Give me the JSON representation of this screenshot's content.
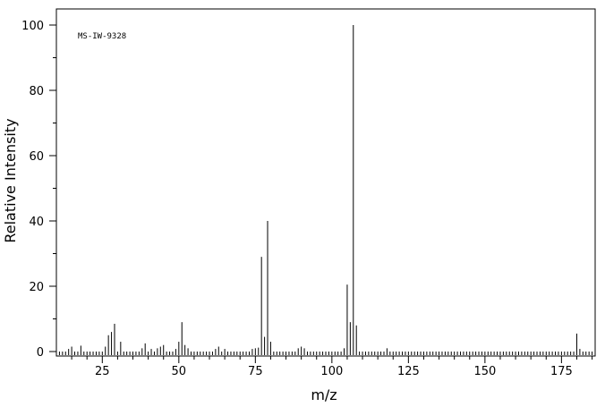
{
  "chart_data": {
    "type": "bar",
    "title": "",
    "annotation": "MS-IW-9328",
    "xlabel": "m/z",
    "ylabel": "Relative Intensity",
    "xlim": [
      10,
      186
    ],
    "ylim": [
      0,
      105
    ],
    "x_ticks": [
      25,
      50,
      75,
      100,
      125,
      150,
      175
    ],
    "y_ticks": [
      0,
      20,
      40,
      60,
      80,
      100
    ],
    "x_tick_labels": [
      "25",
      "50",
      "75",
      "100",
      "125",
      "150",
      "175"
    ],
    "y_tick_labels": [
      "0",
      "20",
      "40",
      "60",
      "80",
      "100"
    ],
    "grid": false,
    "legend": "none",
    "peaks": [
      {
        "mz": 14,
        "intensity": 0.8
      },
      {
        "mz": 15,
        "intensity": 1.5
      },
      {
        "mz": 18,
        "intensity": 1.8
      },
      {
        "mz": 26,
        "intensity": 1.5
      },
      {
        "mz": 27,
        "intensity": 5.0
      },
      {
        "mz": 28,
        "intensity": 6.0
      },
      {
        "mz": 29,
        "intensity": 8.5
      },
      {
        "mz": 31,
        "intensity": 3.0
      },
      {
        "mz": 38,
        "intensity": 1.0
      },
      {
        "mz": 39,
        "intensity": 2.5
      },
      {
        "mz": 41,
        "intensity": 0.8
      },
      {
        "mz": 43,
        "intensity": 1.0
      },
      {
        "mz": 44,
        "intensity": 1.5
      },
      {
        "mz": 45,
        "intensity": 2.0
      },
      {
        "mz": 49,
        "intensity": 0.8
      },
      {
        "mz": 50,
        "intensity": 3.0
      },
      {
        "mz": 51,
        "intensity": 9.0
      },
      {
        "mz": 52,
        "intensity": 2.0
      },
      {
        "mz": 53,
        "intensity": 1.0
      },
      {
        "mz": 62,
        "intensity": 0.8
      },
      {
        "mz": 63,
        "intensity": 1.5
      },
      {
        "mz": 65,
        "intensity": 0.8
      },
      {
        "mz": 74,
        "intensity": 0.8
      },
      {
        "mz": 75,
        "intensity": 1.0
      },
      {
        "mz": 76,
        "intensity": 1.2
      },
      {
        "mz": 77,
        "intensity": 29.0
      },
      {
        "mz": 78,
        "intensity": 4.5
      },
      {
        "mz": 79,
        "intensity": 40.0
      },
      {
        "mz": 80,
        "intensity": 3.0
      },
      {
        "mz": 89,
        "intensity": 1.0
      },
      {
        "mz": 90,
        "intensity": 1.5
      },
      {
        "mz": 91,
        "intensity": 1.0
      },
      {
        "mz": 104,
        "intensity": 1.0
      },
      {
        "mz": 105,
        "intensity": 20.5
      },
      {
        "mz": 106,
        "intensity": 9.0
      },
      {
        "mz": 107,
        "intensity": 100.0
      },
      {
        "mz": 108,
        "intensity": 8.0
      },
      {
        "mz": 118,
        "intensity": 1.0
      },
      {
        "mz": 180,
        "intensity": 5.5
      },
      {
        "mz": 181,
        "intensity": 0.8
      }
    ]
  }
}
